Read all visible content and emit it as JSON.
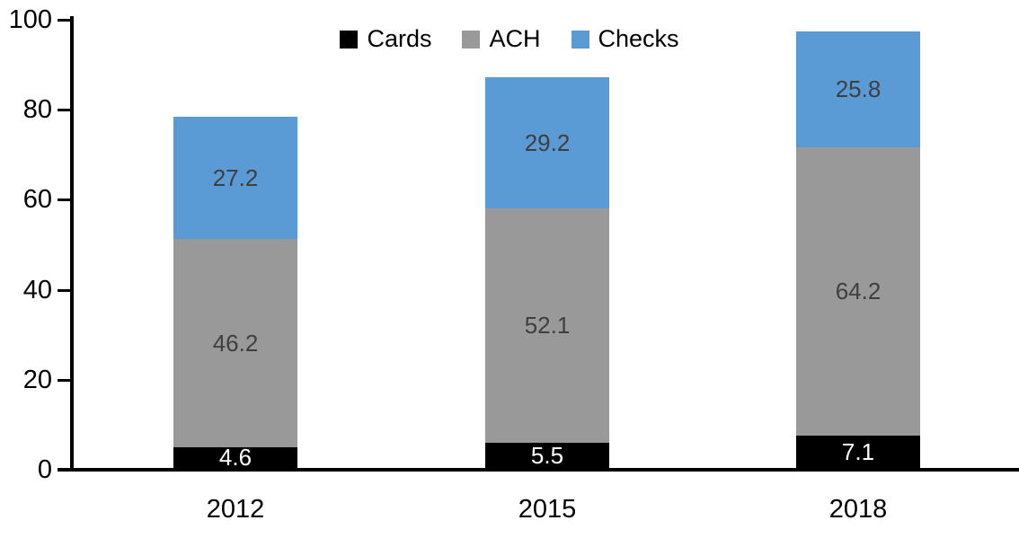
{
  "chart_data": {
    "type": "bar",
    "stacked": true,
    "title": "",
    "xlabel": "",
    "ylabel": "",
    "categories": [
      "2012",
      "2015",
      "2018"
    ],
    "series": [
      {
        "name": "Cards",
        "color": "#000000",
        "label_color": "#ffffff",
        "values": [
          4.6,
          5.5,
          7.1
        ]
      },
      {
        "name": "ACH",
        "color": "#999999",
        "label_color": "#3f3f3f",
        "values": [
          46.2,
          52.1,
          64.2
        ]
      },
      {
        "name": "Checks",
        "color": "#5b9bd5",
        "label_color": "#3f3f3f",
        "values": [
          27.2,
          29.2,
          25.8
        ]
      }
    ],
    "ylim": [
      0,
      100
    ],
    "yticks": [
      0,
      20,
      40,
      60,
      80,
      100
    ],
    "grid": false,
    "legend": {
      "position": "top-center",
      "entries": [
        "Cards",
        "ACH",
        "Checks"
      ]
    },
    "axis_color": "#000000"
  }
}
